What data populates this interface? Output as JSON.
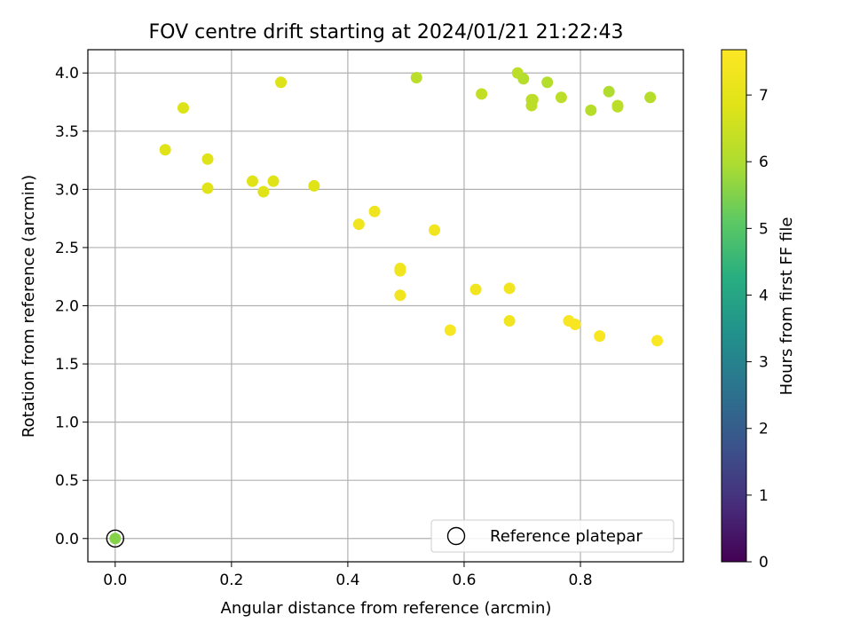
{
  "chart_data": {
    "type": "scatter",
    "title": "FOV centre drift starting at 2024/01/21 21:22:43",
    "xlabel": "Angular distance from reference (arcmin)",
    "ylabel": "Rotation from reference (arcmin)",
    "xlim": [
      -0.047,
      0.977
    ],
    "ylim": [
      -0.2,
      4.2
    ],
    "xticks": [
      "0.0",
      "0.2",
      "0.4",
      "0.6",
      "0.8"
    ],
    "yticks": [
      "0.0",
      "0.5",
      "1.0",
      "1.5",
      "2.0",
      "2.5",
      "3.0",
      "3.5",
      "4.0"
    ],
    "grid": true,
    "colorbar": {
      "label": "Hours from first FF file",
      "range": [
        0,
        7.68
      ],
      "ticks": [
        "0",
        "1",
        "2",
        "3",
        "4",
        "5",
        "6",
        "7"
      ],
      "colormap": "viridis"
    },
    "legend": {
      "position": "lower-right",
      "entries": [
        "Reference platepar"
      ]
    },
    "reference_point": {
      "x": 0.0,
      "y": 0.0
    },
    "points": [
      {
        "x": 0.0,
        "y": 0.0,
        "c": 5.55
      },
      {
        "x": 0.086,
        "y": 3.34,
        "c": 6.85
      },
      {
        "x": 0.117,
        "y": 3.7,
        "c": 6.8
      },
      {
        "x": 0.159,
        "y": 3.26,
        "c": 6.85
      },
      {
        "x": 0.159,
        "y": 3.01,
        "c": 6.85
      },
      {
        "x": 0.236,
        "y": 3.07,
        "c": 6.85
      },
      {
        "x": 0.255,
        "y": 2.98,
        "c": 6.85
      },
      {
        "x": 0.272,
        "y": 3.07,
        "c": 6.85
      },
      {
        "x": 0.285,
        "y": 3.92,
        "c": 6.8
      },
      {
        "x": 0.342,
        "y": 3.03,
        "c": 6.85
      },
      {
        "x": 0.419,
        "y": 2.7,
        "c": 7.3
      },
      {
        "x": 0.446,
        "y": 2.81,
        "c": 7.25
      },
      {
        "x": 0.49,
        "y": 2.32,
        "c": 7.3
      },
      {
        "x": 0.49,
        "y": 2.3,
        "c": 7.3
      },
      {
        "x": 0.49,
        "y": 2.09,
        "c": 7.3
      },
      {
        "x": 0.518,
        "y": 3.96,
        "c": 6.2
      },
      {
        "x": 0.549,
        "y": 2.65,
        "c": 7.3
      },
      {
        "x": 0.576,
        "y": 1.79,
        "c": 7.5
      },
      {
        "x": 0.62,
        "y": 2.14,
        "c": 7.35
      },
      {
        "x": 0.63,
        "y": 3.82,
        "c": 6.35
      },
      {
        "x": 0.678,
        "y": 2.15,
        "c": 7.35
      },
      {
        "x": 0.678,
        "y": 1.87,
        "c": 7.35
      },
      {
        "x": 0.692,
        "y": 4.0,
        "c": 6.25
      },
      {
        "x": 0.702,
        "y": 3.95,
        "c": 6.1
      },
      {
        "x": 0.716,
        "y": 3.77,
        "c": 6.25
      },
      {
        "x": 0.716,
        "y": 3.72,
        "c": 6.25
      },
      {
        "x": 0.718,
        "y": 3.77,
        "c": 6.25
      },
      {
        "x": 0.743,
        "y": 3.92,
        "c": 6.1
      },
      {
        "x": 0.767,
        "y": 3.79,
        "c": 6.25
      },
      {
        "x": 0.78,
        "y": 1.87,
        "c": 7.55
      },
      {
        "x": 0.791,
        "y": 1.84,
        "c": 7.55
      },
      {
        "x": 0.818,
        "y": 3.68,
        "c": 6.15
      },
      {
        "x": 0.833,
        "y": 1.74,
        "c": 7.55
      },
      {
        "x": 0.849,
        "y": 3.84,
        "c": 6.0
      },
      {
        "x": 0.864,
        "y": 3.72,
        "c": 6.25
      },
      {
        "x": 0.864,
        "y": 3.71,
        "c": 6.25
      },
      {
        "x": 0.92,
        "y": 3.79,
        "c": 6.15
      },
      {
        "x": 0.932,
        "y": 1.7,
        "c": 7.6
      }
    ]
  }
}
